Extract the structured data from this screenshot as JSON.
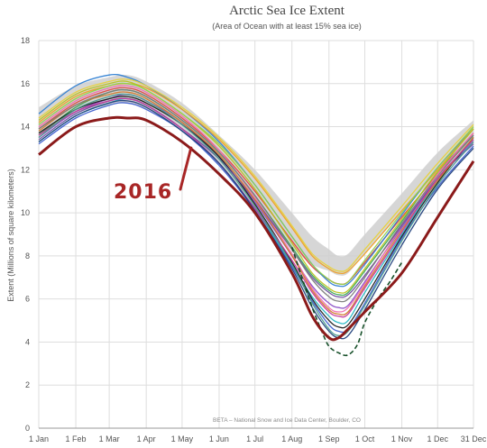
{
  "chart_data": {
    "type": "line",
    "title": "Arctic Sea Ice Extent",
    "subtitle": "(Area of Ocean with at least 15% sea ice)",
    "xlabel": "",
    "ylabel": "Extent (Millions of square kilometers)",
    "ylim": [
      0,
      18
    ],
    "yticks": [
      "0",
      "2",
      "4",
      "6",
      "8",
      "10",
      "12",
      "14",
      "16",
      "18"
    ],
    "xlim": [
      1,
      365
    ],
    "xticks": [
      {
        "label": "1 Jan",
        "day": 1
      },
      {
        "label": "1 Feb",
        "day": 32
      },
      {
        "label": "1 Mar",
        "day": 60
      },
      {
        "label": "1 Apr",
        "day": 91
      },
      {
        "label": "1 May",
        "day": 121
      },
      {
        "label": "1 Jun",
        "day": 152
      },
      {
        "label": "1 Jul",
        "day": 182
      },
      {
        "label": "1 Aug",
        "day": 213
      },
      {
        "label": "1 Sep",
        "day": 244
      },
      {
        "label": "1 Oct",
        "day": 274
      },
      {
        "label": "1 Nov",
        "day": 305
      },
      {
        "label": "1 Dec",
        "day": 335
      },
      {
        "label": "31 Dec",
        "day": 365
      }
    ],
    "grid": true,
    "credit": "BETA – National Snow and Ice Data Center, Boulder, CO",
    "annotation": {
      "text": "2016",
      "points_to_day": 130,
      "points_to_value": 13.1
    },
    "band": {
      "x": [
        1,
        32,
        60,
        75,
        91,
        121,
        152,
        182,
        213,
        230,
        244,
        252,
        260,
        274,
        305,
        335,
        365
      ],
      "upper": [
        14.9,
        15.9,
        16.3,
        16.4,
        16.1,
        15.1,
        13.6,
        12.0,
        10.0,
        8.9,
        8.3,
        8.0,
        8.1,
        9.0,
        10.9,
        12.8,
        14.3
      ],
      "lower": [
        13.6,
        14.6,
        15.0,
        15.1,
        14.8,
        13.8,
        12.2,
        10.4,
        8.4,
        7.6,
        7.3,
        7.1,
        7.2,
        8.1,
        10.0,
        11.8,
        13.4
      ]
    },
    "x": [
      1,
      32,
      60,
      75,
      91,
      121,
      152,
      182,
      213,
      230,
      244,
      252,
      260,
      274,
      305,
      335,
      365
    ],
    "series": [
      {
        "color": "#e0443e",
        "values": [
          13.9,
          15.1,
          15.7,
          15.8,
          15.5,
          14.4,
          12.9,
          11.0,
          8.7,
          7.5,
          6.9,
          6.7,
          6.8,
          7.7,
          9.8,
          11.8,
          13.7
        ]
      },
      {
        "color": "#2f7fd3",
        "values": [
          14.6,
          15.9,
          16.4,
          16.3,
          15.9,
          14.8,
          13.3,
          11.3,
          8.9,
          7.6,
          6.8,
          6.6,
          6.7,
          7.6,
          9.9,
          12.1,
          13.9
        ]
      },
      {
        "color": "#3aa655",
        "values": [
          13.6,
          14.9,
          15.6,
          15.7,
          15.4,
          14.3,
          12.8,
          10.8,
          8.4,
          7.1,
          6.4,
          6.2,
          6.3,
          7.3,
          9.6,
          11.9,
          13.6
        ]
      },
      {
        "color": "#f0a024",
        "values": [
          14.2,
          15.4,
          15.9,
          16.0,
          15.8,
          14.8,
          13.4,
          11.6,
          9.3,
          8.0,
          7.4,
          7.2,
          7.3,
          8.1,
          10.1,
          12.0,
          13.9
        ]
      },
      {
        "color": "#8a4fc7",
        "values": [
          13.5,
          14.7,
          15.3,
          15.5,
          15.2,
          14.2,
          12.6,
          10.5,
          8.0,
          6.6,
          5.8,
          5.6,
          5.7,
          6.8,
          9.3,
          11.6,
          13.3
        ]
      },
      {
        "color": "#ef6fb0",
        "values": [
          14.0,
          15.2,
          15.8,
          15.9,
          15.6,
          14.5,
          12.9,
          10.7,
          8.1,
          6.5,
          5.6,
          5.4,
          5.6,
          6.7,
          9.4,
          11.8,
          13.7
        ]
      },
      {
        "color": "#26b7c4",
        "values": [
          13.3,
          14.5,
          15.1,
          15.3,
          15.0,
          13.9,
          12.3,
          10.2,
          7.6,
          6.1,
          5.2,
          4.9,
          5.0,
          6.3,
          9.0,
          11.5,
          13.4
        ]
      },
      {
        "color": "#b8c31f",
        "values": [
          14.3,
          15.5,
          16.0,
          16.1,
          15.7,
          14.6,
          13.1,
          11.1,
          8.6,
          7.2,
          6.5,
          6.3,
          6.4,
          7.4,
          9.7,
          11.9,
          13.9
        ]
      },
      {
        "color": "#1b1b1b",
        "values": [
          13.7,
          14.8,
          15.3,
          15.4,
          15.1,
          14.1,
          12.6,
          10.4,
          7.7,
          6.0,
          5.0,
          4.7,
          4.8,
          6.0,
          8.9,
          11.4,
          13.5
        ]
      },
      {
        "color": "#6d4c9f",
        "values": [
          13.4,
          14.6,
          15.2,
          15.3,
          15.0,
          13.9,
          12.5,
          10.6,
          8.3,
          7.0,
          6.3,
          6.1,
          6.2,
          7.1,
          9.4,
          11.6,
          13.2
        ]
      },
      {
        "color": "#d27a2c",
        "values": [
          13.8,
          15.0,
          15.5,
          15.6,
          15.3,
          14.2,
          12.7,
          10.6,
          8.0,
          6.4,
          5.5,
          5.3,
          5.4,
          6.6,
          9.2,
          11.5,
          13.5
        ]
      },
      {
        "color": "#3f5fcf",
        "values": [
          13.2,
          14.4,
          15.0,
          15.1,
          14.8,
          13.8,
          12.2,
          10.1,
          7.5,
          5.9,
          4.8,
          4.5,
          4.6,
          5.8,
          8.8,
          11.2,
          13.1
        ]
      },
      {
        "color": "#8fd14f",
        "values": [
          14.1,
          15.3,
          15.9,
          16.0,
          15.7,
          14.6,
          13.2,
          11.3,
          8.9,
          7.6,
          6.9,
          6.7,
          6.8,
          7.8,
          10.0,
          12.1,
          14.0
        ]
      },
      {
        "color": "#c2399d",
        "values": [
          13.6,
          14.7,
          15.2,
          15.3,
          15.0,
          13.9,
          12.3,
          10.2,
          7.8,
          6.3,
          5.4,
          5.2,
          5.3,
          6.5,
          9.1,
          11.6,
          13.4
        ]
      },
      {
        "color": "#4a9b8e",
        "values": [
          13.5,
          14.8,
          15.4,
          15.5,
          15.2,
          14.1,
          12.5,
          10.3,
          7.6,
          5.8,
          4.6,
          4.3,
          4.5,
          5.7,
          8.7,
          11.3,
          13.3
        ]
      },
      {
        "color": "#e8d23a",
        "values": [
          14.4,
          15.6,
          16.1,
          16.2,
          15.9,
          14.9,
          13.5,
          11.7,
          9.4,
          8.1,
          7.5,
          7.3,
          7.4,
          8.3,
          10.3,
          12.3,
          14.1
        ]
      },
      {
        "color": "#7b7b7b",
        "values": [
          13.9,
          15.0,
          15.6,
          15.7,
          15.4,
          14.3,
          12.8,
          10.8,
          8.3,
          6.9,
          6.1,
          5.9,
          6.0,
          7.0,
          9.5,
          11.7,
          13.6
        ]
      },
      {
        "color": "#1f3f7a",
        "values": [
          13.3,
          14.5,
          15.1,
          15.2,
          14.9,
          13.8,
          12.3,
          10.1,
          7.4,
          5.6,
          4.5,
          4.2,
          4.3,
          5.5,
          8.5,
          11.1,
          13.0
        ]
      }
    ],
    "highlight": {
      "name": "2016",
      "color": "#8b1a1a",
      "values": [
        12.7,
        14.0,
        14.4,
        14.4,
        14.3,
        13.3,
        11.8,
        10.0,
        7.2,
        5.2,
        4.2,
        4.2,
        4.6,
        5.4,
        7.2,
        9.8,
        12.4
      ]
    },
    "minimum_record": {
      "style": "dashed",
      "color": "#17502a",
      "x": [
        213,
        222,
        230,
        238,
        244,
        252,
        260,
        268,
        274,
        285,
        295,
        305
      ],
      "values": [
        8.4,
        6.9,
        5.6,
        4.5,
        3.8,
        3.5,
        3.4,
        3.9,
        4.9,
        6.0,
        6.8,
        7.7
      ]
    }
  }
}
